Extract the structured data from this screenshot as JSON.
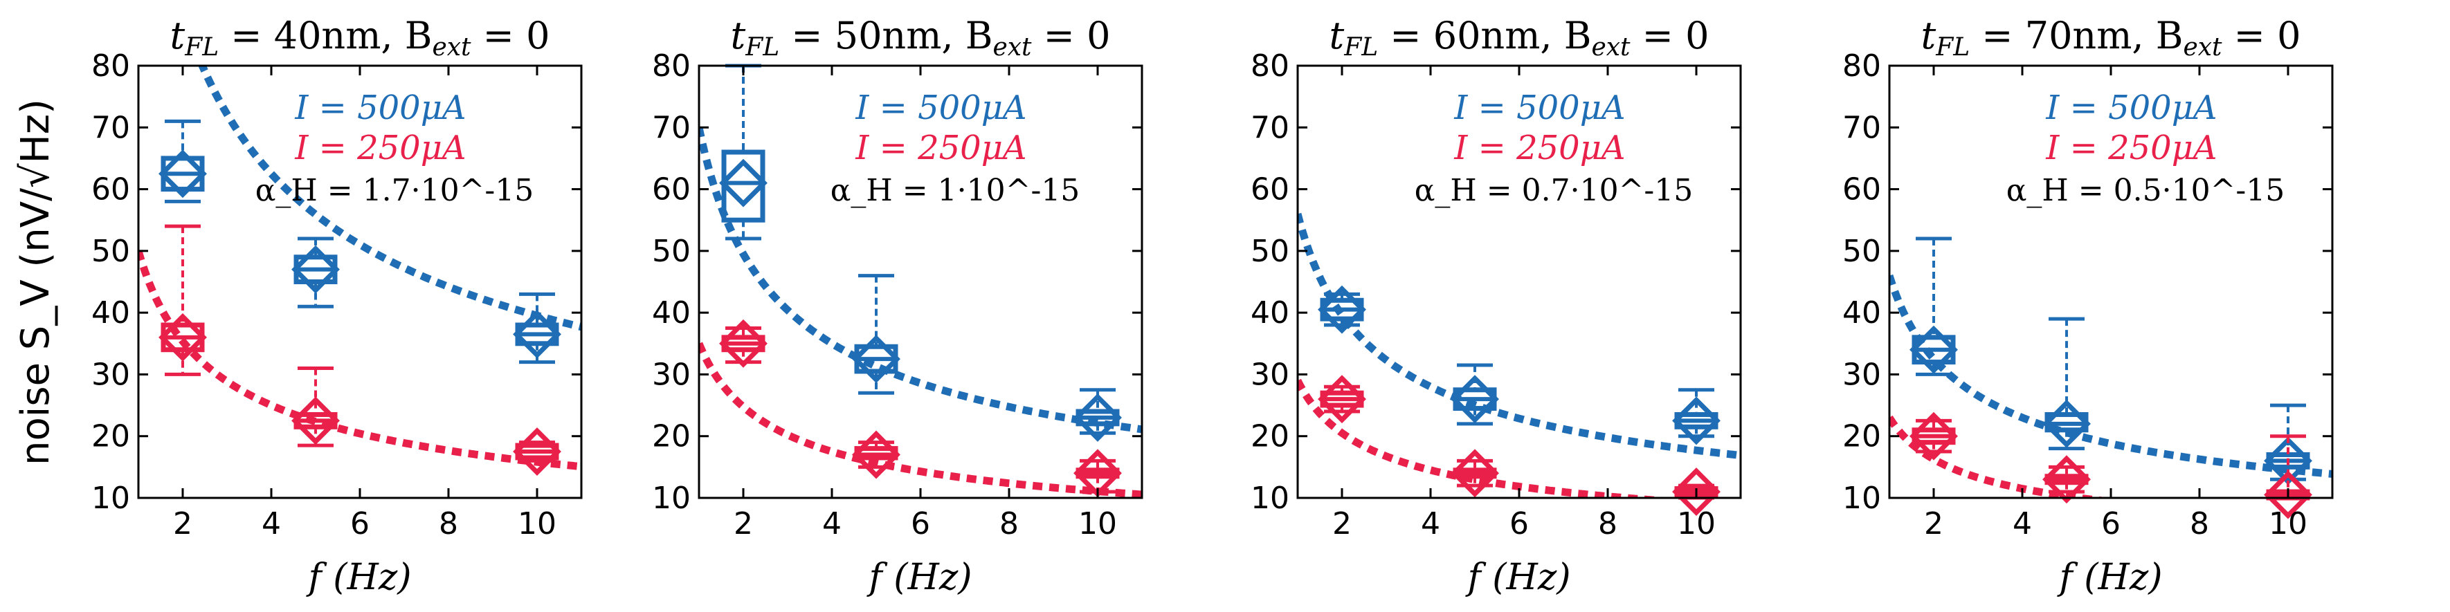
{
  "colors": {
    "blue": "#1f6db5",
    "red": "#e8204a",
    "axis": "#000000"
  },
  "ylabel": "noise S_V  (nV/√Hz)",
  "chart_data": [
    {
      "type": "scatter",
      "title": "t_FL = 40nm, B_ext = 0",
      "title_main": "t",
      "title_sub": "FL",
      "title_rest": " = 40nm, B",
      "title_sub2": "ext",
      "title_end": " = 0",
      "xlabel": "f (Hz)",
      "xlim": [
        1,
        11
      ],
      "ylim": [
        10,
        80
      ],
      "xticks": [
        2,
        4,
        6,
        8,
        10
      ],
      "yticks": [
        10,
        20,
        30,
        40,
        50,
        60,
        70,
        80
      ],
      "legend": [
        "I = 500μA",
        "I = 250μA"
      ],
      "alpha_label": "α_H = 1.7·10^-15",
      "alpha_value": "1.7",
      "series": [
        {
          "name": "I = 500μA",
          "color": "blue",
          "fit_a": 125,
          "points": [
            {
              "x": 2,
              "y": 62.5,
              "q1": 60,
              "q3": 65,
              "lo": 58,
              "hi": 71
            },
            {
              "x": 5,
              "y": 47,
              "q1": 45,
              "q3": 49,
              "lo": 41,
              "hi": 52
            },
            {
              "x": 10,
              "y": 36.5,
              "q1": 35,
              "q3": 38,
              "lo": 32,
              "hi": 43
            }
          ]
        },
        {
          "name": "I = 250μA",
          "color": "red",
          "fit_a": 50,
          "fit_c": 13,
          "points": [
            {
              "x": 2,
              "y": 36,
              "q1": 34,
              "q3": 38,
              "lo": 30,
              "hi": 54
            },
            {
              "x": 5,
              "y": 22.5,
              "q1": 21.5,
              "q3": 23.5,
              "lo": 18.5,
              "hi": 31
            },
            {
              "x": 10,
              "y": 17.5,
              "q1": 16.5,
              "q3": 18.5,
              "lo": 16,
              "hi": 19
            }
          ]
        }
      ]
    },
    {
      "type": "scatter",
      "title": "t_FL = 50nm, B_ext = 0",
      "title_main": "t",
      "title_sub": "FL",
      "title_rest": " = 50nm, B",
      "title_sub2": "ext",
      "title_end": " = 0",
      "xlabel": "f (Hz)",
      "xlim": [
        1,
        11
      ],
      "ylim": [
        10,
        80
      ],
      "xticks": [
        2,
        4,
        6,
        8,
        10
      ],
      "yticks": [
        10,
        20,
        30,
        40,
        50,
        60,
        70,
        80
      ],
      "legend": [
        "I = 500μA",
        "I = 250μA"
      ],
      "alpha_label": "α_H = 1·10^-15",
      "alpha_value": "1",
      "series": [
        {
          "name": "I = 500μA",
          "color": "blue",
          "fit_a": 70,
          "fit_c": 0,
          "points": [
            {
              "x": 2,
              "y": 61,
              "q1": 55,
              "q3": 66,
              "lo": 52,
              "hi": 80
            },
            {
              "x": 5,
              "y": 32.5,
              "q1": 30.5,
              "q3": 34.5,
              "lo": 27,
              "hi": 46
            },
            {
              "x": 10,
              "y": 23,
              "q1": 22,
              "q3": 24,
              "lo": 20.5,
              "hi": 27.5
            }
          ]
        },
        {
          "name": "I = 250μA",
          "color": "red",
          "fit_a": 35,
          "fit_c": 0,
          "points": [
            {
              "x": 2,
              "y": 35,
              "q1": 34,
              "q3": 36,
              "lo": 32,
              "hi": 37.5
            },
            {
              "x": 5,
              "y": 17,
              "q1": 16.5,
              "q3": 18,
              "lo": 15,
              "hi": 19
            },
            {
              "x": 10,
              "y": 14,
              "q1": 13.5,
              "q3": 14.5,
              "lo": 11,
              "hi": 16
            }
          ]
        }
      ]
    },
    {
      "type": "scatter",
      "title": "t_FL = 60nm, B_ext = 0",
      "title_main": "t",
      "title_sub": "FL",
      "title_rest": " = 60nm, B",
      "title_sub2": "ext",
      "title_end": " = 0",
      "xlabel": "f (Hz)",
      "xlim": [
        1,
        11
      ],
      "ylim": [
        10,
        80
      ],
      "xticks": [
        2,
        4,
        6,
        8,
        10
      ],
      "yticks": [
        10,
        20,
        30,
        40,
        50,
        60,
        70,
        80
      ],
      "legend": [
        "I = 500μA",
        "I = 250μA"
      ],
      "alpha_label": "α_H = 0.7·10^-15",
      "alpha_value": "0.7",
      "series": [
        {
          "name": "I = 500μA",
          "color": "blue",
          "fit_a": 56,
          "fit_c": 0,
          "points": [
            {
              "x": 2,
              "y": 40.5,
              "q1": 39,
              "q3": 42,
              "lo": 38,
              "hi": 43
            },
            {
              "x": 5,
              "y": 26,
              "q1": 24.5,
              "q3": 27.5,
              "lo": 22,
              "hi": 31.5
            },
            {
              "x": 10,
              "y": 22.5,
              "q1": 21.5,
              "q3": 23.5,
              "lo": 20,
              "hi": 27.5
            }
          ]
        },
        {
          "name": "I = 250μA",
          "color": "red",
          "fit_a": 29,
          "fit_c": 0,
          "points": [
            {
              "x": 2,
              "y": 26,
              "q1": 25,
              "q3": 27,
              "lo": 24,
              "hi": 28
            },
            {
              "x": 5,
              "y": 14,
              "q1": 13.5,
              "q3": 14.5,
              "lo": 12,
              "hi": 16
            },
            {
              "x": 10,
              "y": 11,
              "q1": 10.5,
              "q3": 11.5,
              "lo": 10,
              "hi": 12
            }
          ]
        }
      ]
    },
    {
      "type": "scatter",
      "title": "t_FL = 70nm, B_ext = 0",
      "title_main": "t",
      "title_sub": "FL",
      "title_rest": " = 70nm, B",
      "title_sub2": "ext",
      "title_end": " = 0",
      "xlabel": "f (Hz)",
      "xlim": [
        1,
        11
      ],
      "ylim": [
        10,
        80
      ],
      "xticks": [
        2,
        4,
        6,
        8,
        10
      ],
      "yticks": [
        10,
        20,
        30,
        40,
        50,
        60,
        70,
        80
      ],
      "legend": [
        "I = 500μA",
        "I = 250μA"
      ],
      "alpha_label": "α_H = 0.5·10^-15",
      "alpha_value": "0.5",
      "series": [
        {
          "name": "I = 500μA",
          "color": "blue",
          "fit_a": 46,
          "fit_c": 0,
          "points": [
            {
              "x": 2,
              "y": 34,
              "q1": 32,
              "q3": 36,
              "lo": 30,
              "hi": 52
            },
            {
              "x": 5,
              "y": 22,
              "q1": 21,
              "q3": 23.5,
              "lo": 18,
              "hi": 39
            },
            {
              "x": 10,
              "y": 16,
              "q1": 15,
              "q3": 17,
              "lo": 13,
              "hi": 25
            }
          ]
        },
        {
          "name": "I = 250μA",
          "color": "red",
          "fit_a": 23,
          "fit_c": 0,
          "points": [
            {
              "x": 2,
              "y": 20,
              "q1": 19,
              "q3": 21,
              "lo": 17.5,
              "hi": 22.5
            },
            {
              "x": 5,
              "y": 13,
              "q1": 12.5,
              "q3": 13.5,
              "lo": 11,
              "hi": 15
            },
            {
              "x": 10,
              "y": 10.5,
              "q1": 10,
              "q3": 11,
              "lo": 10,
              "hi": 20
            }
          ]
        }
      ]
    }
  ]
}
